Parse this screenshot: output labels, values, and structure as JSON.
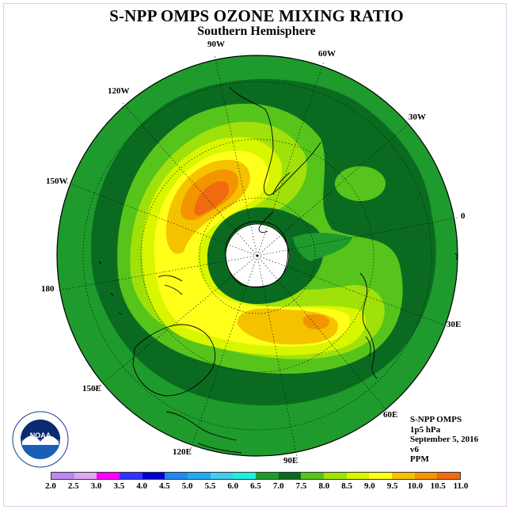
{
  "header": {
    "title": "S-NPP OMPS OZONE MIXING RATIO",
    "subtitle": "Southern Hemisphere"
  },
  "map": {
    "longitude_labels": [
      {
        "text": "90W"
      },
      {
        "text": "60W"
      },
      {
        "text": "120W"
      },
      {
        "text": "30W"
      },
      {
        "text": "150W"
      },
      {
        "text": "0"
      },
      {
        "text": "180"
      },
      {
        "text": "30E"
      },
      {
        "text": "150E"
      },
      {
        "text": "60E"
      },
      {
        "text": "120E"
      },
      {
        "text": "90E"
      }
    ],
    "pole_missing_data_color": "#ffffff",
    "contour_colors": {
      "6.0-6.5": "#1f9a2d",
      "6.5-7.0": "#0a6b20",
      "7.0-7.5": "#57c41c",
      "7.5-8.0": "#a0e10a",
      "8.0-8.5": "#d8f600",
      "8.5-9.0": "#ffff1a",
      "9.0-9.5": "#f5c200",
      "9.5-10.0": "#f39400",
      "10.0-10.5": "#f06a10"
    }
  },
  "info": {
    "instrument": "S-NPP OMPS",
    "level": "1p5 hPa",
    "date": "September 5, 2016",
    "version": "v6",
    "units": "PPM"
  },
  "colorbar": {
    "ticks": [
      "2.0",
      "2.5",
      "3.0",
      "3.5",
      "4.0",
      "4.5",
      "5.0",
      "5.5",
      "6.0",
      "6.5",
      "7.0",
      "7.5",
      "8.0",
      "8.5",
      "9.0",
      "9.5",
      "10.0",
      "10.5",
      "11.0"
    ],
    "colors": [
      "#bb88ee",
      "#dda8ee",
      "#ff00ff",
      "#3333ff",
      "#0000cc",
      "#2288ee",
      "#22aaee",
      "#44ccee",
      "#22eedd",
      "#1f9a2d",
      "#0a6b20",
      "#57c41c",
      "#a0e10a",
      "#d8f600",
      "#ffff1a",
      "#f5c200",
      "#f39400",
      "#f06a10",
      "#ee0000",
      "#885533"
    ]
  },
  "logo": {
    "text": "NOAA",
    "ring_text": "NATIONAL OCEANIC AND ATMOSPHERIC ADMINISTRATION",
    "ring_text_bottom": "U.S. DEPARTMENT OF COMMERCE"
  }
}
